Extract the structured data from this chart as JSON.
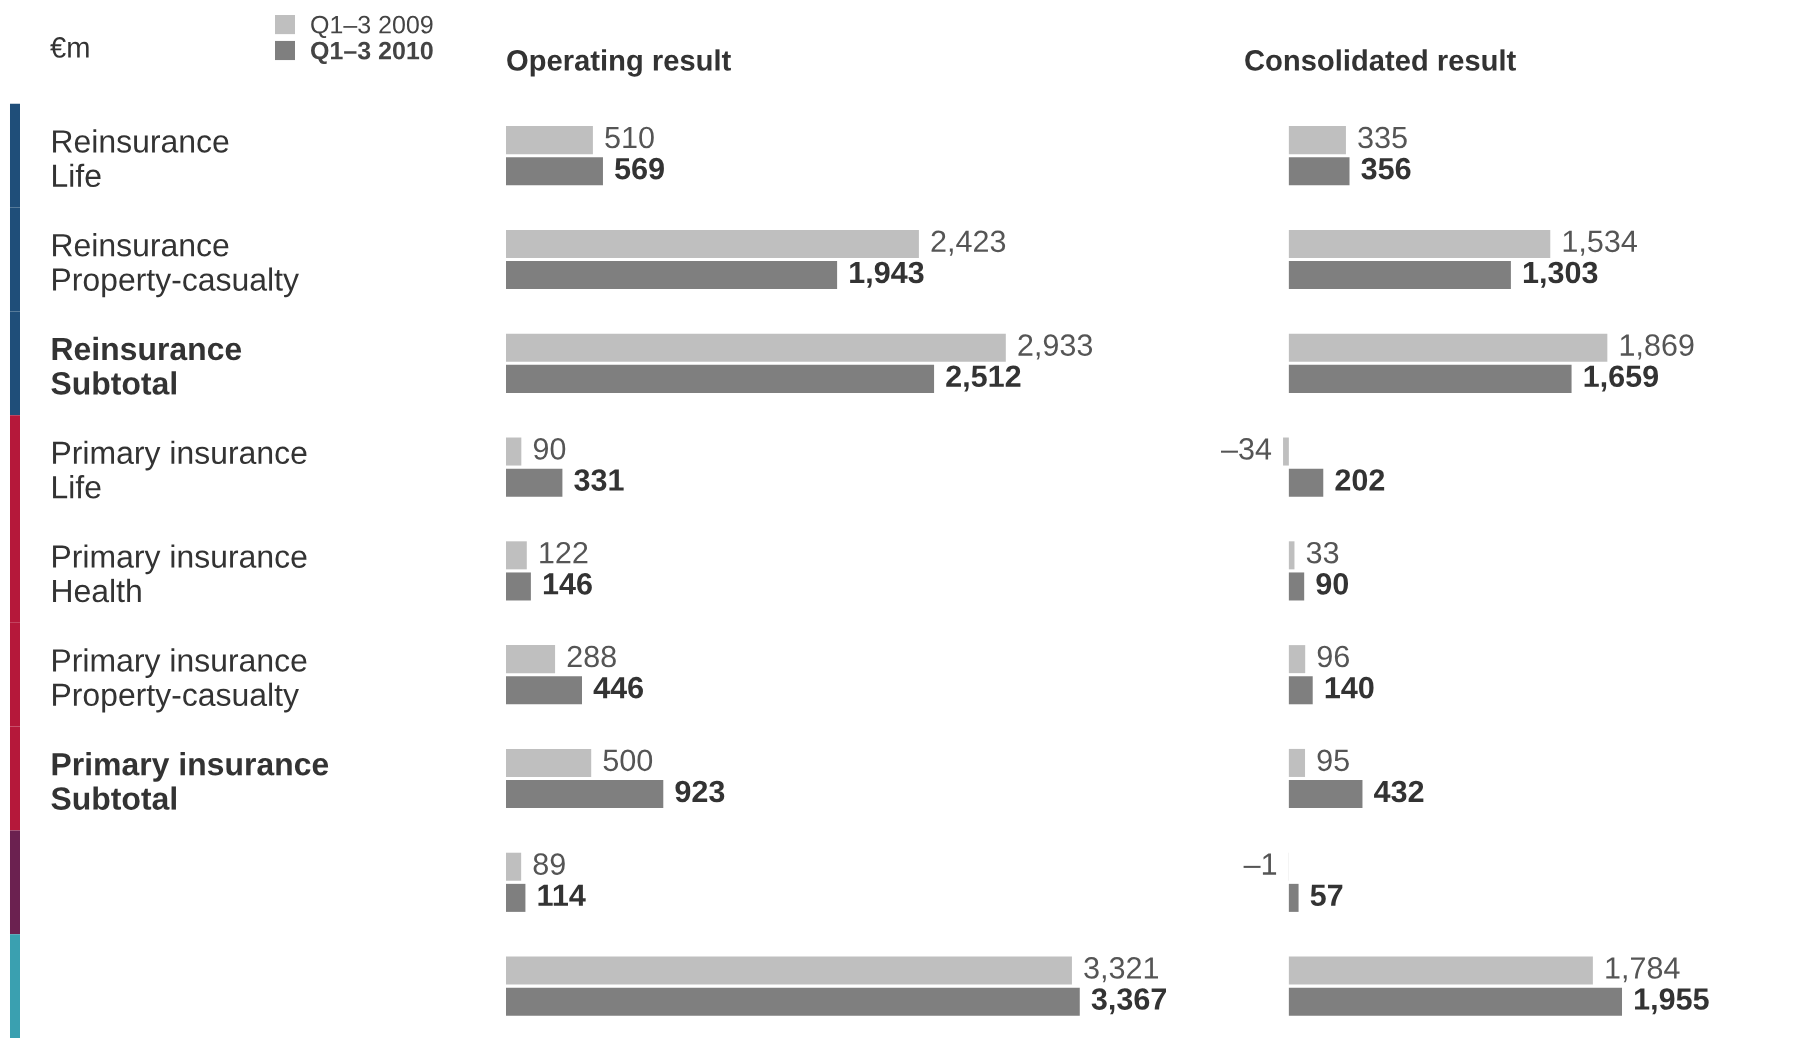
{
  "chart_data": [
    {
      "type": "bar",
      "orientation": "horizontal",
      "title": "Operating result",
      "annotations": [
        "€m"
      ],
      "legend": "top left",
      "tick_labels": "y",
      "categories": [
        "Reinsurance\nLife",
        "Reinsurance\nProperty-casualty",
        "Reinsurance\nSubtotal",
        "Primary insurance\nLife",
        "Primary insurance\nHealth",
        "Primary insurance\nProperty-casualty",
        "Primary insurance\nSubtotal",
        null,
        null
      ],
      "series": [
        {
          "name": "Q1–3 2009",
          "color": "#bfbfbf",
          "values": [
            510,
            2423,
            2933,
            90,
            122,
            288,
            500,
            89,
            3321
          ],
          "value_labels": [
            "510",
            "2,423",
            "2,933",
            "90",
            "122",
            "288",
            "500",
            "89",
            "3,321"
          ]
        },
        {
          "name": "Q1–3 2010",
          "color": "#7f7f7f",
          "values": [
            569,
            1943,
            2512,
            331,
            146,
            446,
            923,
            114,
            3367
          ],
          "value_labels": [
            "569",
            "1,943",
            "2,512",
            "331",
            "146",
            "446",
            "923",
            "114",
            "3,367"
          ]
        }
      ]
    },
    {
      "type": "bar",
      "orientation": "horizontal",
      "title": "Consolidated result",
      "tick_labels": false,
      "categories": [
        null,
        null,
        null,
        null,
        null,
        null,
        null,
        null,
        null
      ],
      "series": [
        {
          "color": "#bfbfbf",
          "values": [
            335,
            1534,
            1869,
            -34,
            33,
            96,
            95,
            -1,
            1784
          ],
          "value_labels": [
            "335",
            "1,534",
            "1,869",
            "–34",
            "33",
            "96",
            "95",
            "–1",
            "1,784"
          ]
        },
        {
          "color": "#7f7f7f",
          "values": [
            356,
            1303,
            1659,
            202,
            90,
            140,
            432,
            57,
            1955
          ],
          "value_labels": [
            "356",
            "1,303",
            "1,659",
            "202",
            "90",
            "140",
            "432",
            "57",
            "1,955"
          ]
        }
      ]
    }
  ]
}
